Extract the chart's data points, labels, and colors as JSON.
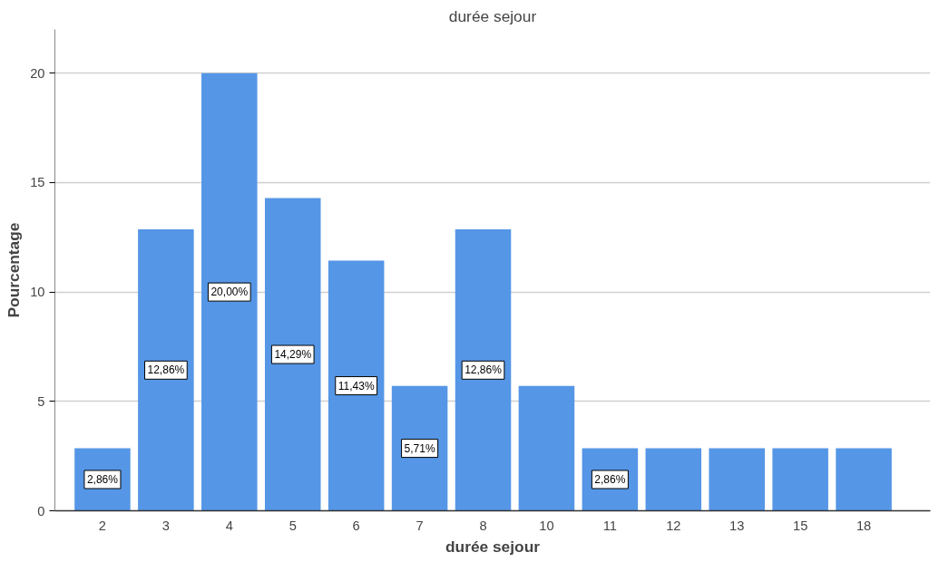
{
  "chart_data": {
    "type": "bar",
    "title": "durée sejour",
    "xlabel": "durée sejour",
    "ylabel": "Pourcentage",
    "categories": [
      "2",
      "3",
      "4",
      "5",
      "6",
      "7",
      "8",
      "10",
      "11",
      "12",
      "13",
      "15",
      "18"
    ],
    "values": [
      2.86,
      12.86,
      20.0,
      14.29,
      11.43,
      5.71,
      12.86,
      5.71,
      2.86,
      2.86,
      2.86,
      2.86,
      2.86
    ],
    "value_labels": [
      "2,86%",
      "12,86%",
      "20,00%",
      "14,29%",
      "11,43%",
      "5,71%",
      "12,86%",
      null,
      "2,86%",
      null,
      null,
      null,
      null
    ],
    "color": "#5596e6",
    "ylim": [
      0,
      22
    ],
    "yticks": [
      0,
      5,
      10,
      15,
      20
    ],
    "grid": "y"
  }
}
